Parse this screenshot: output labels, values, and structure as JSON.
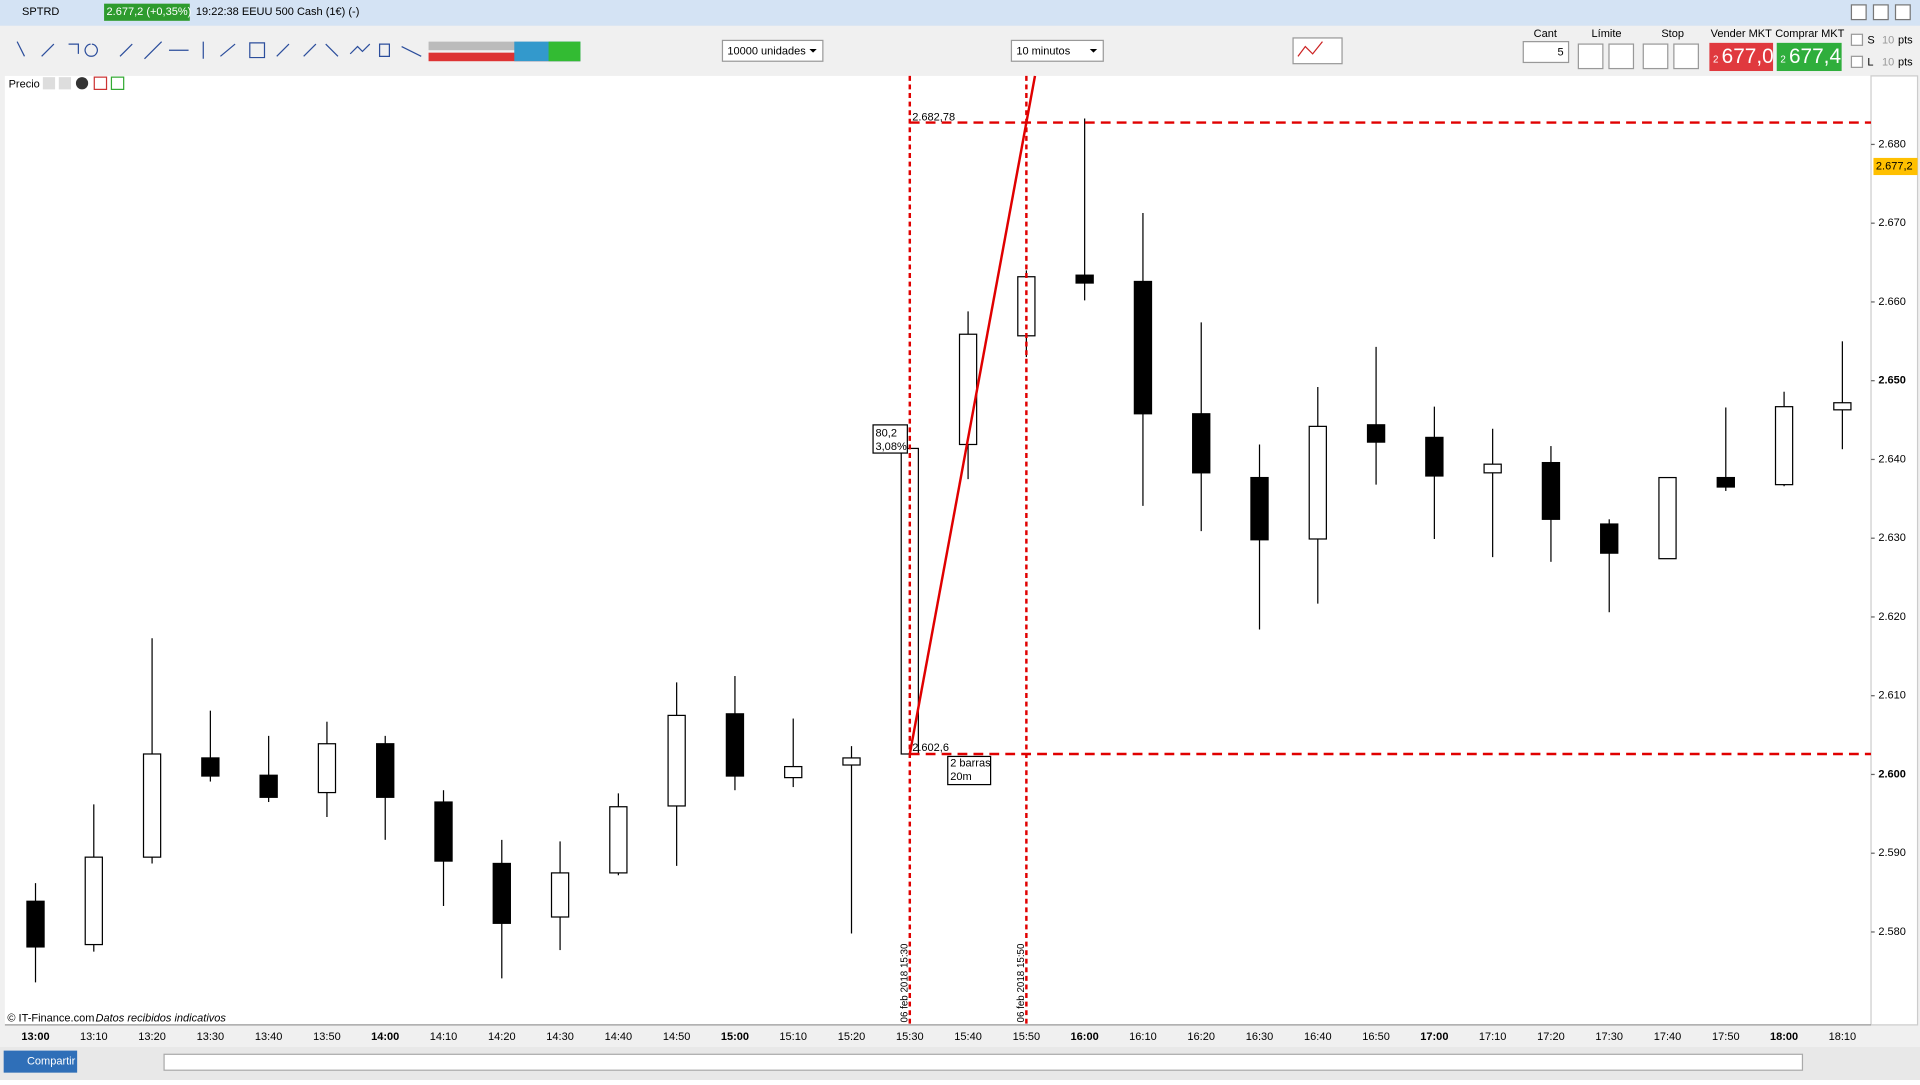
{
  "header": {
    "symbol": "SPTRD",
    "quote": "2.677,2 (+0,35%)",
    "info": "19:22:38 EEUU 500 Cash (1€) (-)"
  },
  "toolbar": {
    "quantity": "10000 unidades",
    "timeframe": "10 minutos",
    "cant_label": "Cant",
    "cant_value": "5",
    "limit_label": "Límite",
    "stop_label": "Stop",
    "sell_label": "Vender MKT",
    "buy_label": "Comprar MKT",
    "sell_prefix": "2",
    "sell_price": "677,0",
    "buy_prefix": "2",
    "buy_price": "677,4",
    "s_label": "S",
    "s_value": "10",
    "s_unit": "pts",
    "l_label": "L",
    "l_value": "10",
    "l_unit": "pts"
  },
  "panel": {
    "title": "Precio"
  },
  "footer": {
    "copyright": "© IT-Finance.com",
    "note": "Datos recibidos indicativos",
    "share": "Compartir"
  },
  "chart_data": {
    "type": "candlestick",
    "categories": [
      "13:00",
      "13:10",
      "13:20",
      "13:30",
      "13:40",
      "13:50",
      "14:00",
      "14:10",
      "14:20",
      "14:30",
      "14:40",
      "14:50",
      "15:00",
      "15:10",
      "15:20",
      "15:30",
      "15:40",
      "15:50",
      "16:00",
      "16:10",
      "16:20",
      "16:30",
      "16:40",
      "16:50",
      "17:00",
      "17:10",
      "17:20",
      "17:30",
      "17:40",
      "17:50",
      "18:00",
      "18:10"
    ],
    "open": [
      2583.9,
      2578.4,
      2589.5,
      2602.1,
      2599.9,
      2597.7,
      2603.9,
      2596.5,
      2588.7,
      2581.9,
      2587.5,
      2596.0,
      2607.7,
      2599.6,
      2601.2,
      2602.6,
      2641.9,
      2655.7,
      2663.4,
      2662.6,
      2645.8,
      2637.7,
      2629.9,
      2644.4,
      2642.8,
      2638.3,
      2639.6,
      2631.8,
      2627.4,
      2637.7,
      2636.8,
      2646.3
    ],
    "high": [
      2586.2,
      2596.2,
      2617.3,
      2608.1,
      2604.9,
      2606.7,
      2604.9,
      2598.0,
      2591.7,
      2591.5,
      2597.6,
      2611.7,
      2612.5,
      2607.1,
      2603.6,
      2641.4,
      2658.8,
      2664.0,
      2683.3,
      2671.3,
      2657.4,
      2641.9,
      2649.2,
      2654.3,
      2646.7,
      2643.9,
      2641.7,
      2632.4,
      2637.7,
      2646.6,
      2648.6,
      2655.0
    ],
    "low": [
      2573.6,
      2577.5,
      2588.7,
      2599.1,
      2596.5,
      2594.6,
      2591.7,
      2583.3,
      2574.1,
      2577.7,
      2587.2,
      2588.4,
      2598.0,
      2598.4,
      2579.8,
      2602.6,
      2637.5,
      2653.0,
      2660.2,
      2634.1,
      2630.9,
      2618.4,
      2621.7,
      2636.8,
      2629.9,
      2627.6,
      2627.0,
      2620.6,
      2627.4,
      2636.0,
      2636.6,
      2641.3
    ],
    "close": [
      2578.1,
      2589.5,
      2602.6,
      2599.8,
      2597.1,
      2603.9,
      2597.1,
      2589.0,
      2581.1,
      2587.5,
      2595.9,
      2607.5,
      2599.8,
      2601.0,
      2602.1,
      2641.4,
      2655.9,
      2663.2,
      2662.4,
      2645.8,
      2638.3,
      2629.8,
      2644.2,
      2642.2,
      2637.9,
      2639.4,
      2632.4,
      2628.1,
      2637.7,
      2636.5,
      2646.7,
      2647.2
    ],
    "ylim": [
      2568.2,
      2688.7
    ],
    "yticks": [
      {
        "value": 2580,
        "label": "2.580"
      },
      {
        "value": 2590,
        "label": "2.590"
      },
      {
        "value": 2600,
        "label": "2.600"
      },
      {
        "value": 2610,
        "label": "2.610"
      },
      {
        "value": 2620,
        "label": "2.620"
      },
      {
        "value": 2630,
        "label": "2.630"
      },
      {
        "value": 2640,
        "label": "2.640"
      },
      {
        "value": 2650,
        "label": "2.650"
      },
      {
        "value": 2660,
        "label": "2.660"
      },
      {
        "value": 2670,
        "label": "2.670"
      },
      {
        "value": 2680,
        "label": "2.680"
      }
    ],
    "current_price": {
      "value": 2677.2,
      "label": "2.677,2"
    },
    "annotations": {
      "high": {
        "value": 2682.78,
        "label": "2.682,78"
      },
      "low": {
        "value": 2602.6,
        "label": "2.602,6"
      },
      "change": "80,2",
      "change_pct": "3,08%",
      "bars": "2 barras",
      "span": "20m",
      "start_label": "06 feb 2018 15:30",
      "end_label": "06 feb 2018 15:50",
      "start_index": 15,
      "end_index": 17
    },
    "up_color": "#ffffff",
    "down_color": "#000000",
    "annotation_color": "#e00000"
  }
}
